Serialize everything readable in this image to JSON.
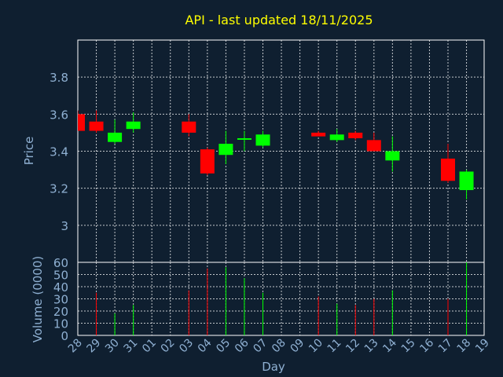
{
  "chart_data": {
    "type": "candlestick",
    "title": "API - last updated 18/11/2025",
    "price_panel": {
      "ylabel": "Price",
      "ylim": [
        2.8,
        4.0
      ],
      "yticks": [
        "3",
        "3.2",
        "3.4",
        "3.6",
        "3.8"
      ],
      "ytick_values": [
        3.0,
        3.2,
        3.4,
        3.6,
        3.8
      ]
    },
    "volume_panel": {
      "ylabel": "Volume (0000)",
      "ylim": [
        0,
        60
      ],
      "yticks": [
        "0",
        "10",
        "20",
        "30",
        "40",
        "50",
        "60"
      ],
      "ytick_values": [
        0,
        10,
        20,
        30,
        40,
        50,
        60
      ]
    },
    "xlabel": "Day",
    "x_ticks": [
      "28",
      "29",
      "30",
      "31",
      "01",
      "02",
      "03",
      "04",
      "05",
      "06",
      "07",
      "08",
      "09",
      "10",
      "11",
      "12",
      "13",
      "14",
      "15",
      "16",
      "17",
      "18",
      "19"
    ],
    "candles": [
      {
        "day": "28",
        "open": 3.6,
        "high": 3.62,
        "low": 3.51,
        "close": 3.51,
        "volume": 0
      },
      {
        "day": "29",
        "open": 3.56,
        "high": 3.62,
        "low": 3.5,
        "close": 3.51,
        "volume": 35
      },
      {
        "day": "30",
        "open": 3.45,
        "high": 3.57,
        "low": 3.44,
        "close": 3.5,
        "volume": 18
      },
      {
        "day": "31",
        "open": 3.52,
        "high": 3.61,
        "low": 3.5,
        "close": 3.56,
        "volume": 25
      },
      {
        "day": "03",
        "open": 3.56,
        "high": 3.6,
        "low": 3.48,
        "close": 3.5,
        "volume": 37
      },
      {
        "day": "04",
        "open": 3.41,
        "high": 3.42,
        "low": 3.27,
        "close": 3.28,
        "volume": 55
      },
      {
        "day": "05",
        "open": 3.38,
        "high": 3.51,
        "low": 3.33,
        "close": 3.44,
        "volume": 56
      },
      {
        "day": "06",
        "open": 3.47,
        "high": 3.51,
        "low": 3.4,
        "close": 3.47,
        "volume": 47
      },
      {
        "day": "07",
        "open": 3.43,
        "high": 3.51,
        "low": 3.42,
        "close": 3.49,
        "volume": 35
      },
      {
        "day": "10",
        "open": 3.5,
        "high": 3.51,
        "low": 3.48,
        "close": 3.48,
        "volume": 32
      },
      {
        "day": "11",
        "open": 3.46,
        "high": 3.52,
        "low": 3.45,
        "close": 3.49,
        "volume": 26
      },
      {
        "day": "12",
        "open": 3.5,
        "high": 3.51,
        "low": 3.46,
        "close": 3.47,
        "volume": 25
      },
      {
        "day": "13",
        "open": 3.46,
        "high": 3.5,
        "low": 3.4,
        "close": 3.4,
        "volume": 30
      },
      {
        "day": "14",
        "open": 3.35,
        "high": 3.48,
        "low": 3.29,
        "close": 3.4,
        "volume": 37
      },
      {
        "day": "17",
        "open": 3.36,
        "high": 3.44,
        "low": 3.23,
        "close": 3.24,
        "volume": 30
      },
      {
        "day": "18",
        "open": 3.19,
        "high": 3.3,
        "low": 3.14,
        "close": 3.29,
        "volume": 60
      }
    ],
    "up_color": "#00ff00",
    "down_color": "#ff0000",
    "grid": true
  }
}
